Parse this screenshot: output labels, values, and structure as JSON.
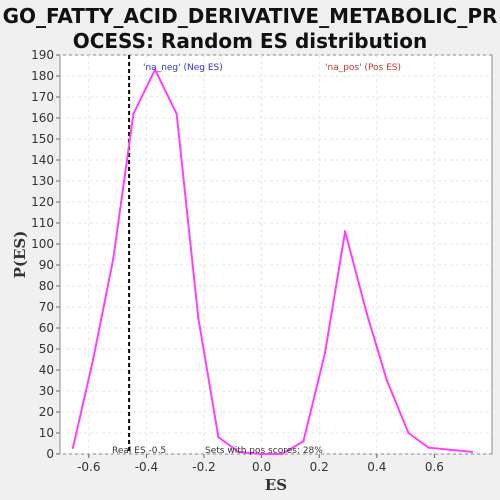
{
  "chart_data": {
    "type": "line",
    "title_line1": "GO_FATTY_ACID_DERIVATIVE_METABOLIC_PR",
    "title_line2": "OCESS: Random ES distribution",
    "xlabel": "ES",
    "ylabel": "P(ES)",
    "xlim": [
      -0.7,
      0.8
    ],
    "ylim": [
      0,
      190
    ],
    "xticks": [
      -0.6,
      -0.4,
      -0.2,
      0.0,
      0.2,
      0.4,
      0.6
    ],
    "xtick_labels": [
      "-0.6",
      "-0.4",
      "-0.2",
      "0.0",
      "0.2",
      "0.4",
      "0.6"
    ],
    "yticks": [
      0,
      10,
      20,
      30,
      40,
      50,
      60,
      70,
      80,
      90,
      100,
      110,
      120,
      130,
      140,
      150,
      160,
      170,
      180,
      190
    ],
    "grid": true,
    "series": [
      {
        "color": "#ff40ff",
        "x": [
          -0.655,
          -0.585,
          -0.515,
          -0.445,
          -0.37,
          -0.295,
          -0.22,
          -0.15,
          -0.08,
          -0.005,
          0.07,
          0.145,
          0.22,
          0.29,
          0.365,
          0.435,
          0.51,
          0.58,
          0.655,
          0.73
        ],
        "y": [
          3,
          45,
          93,
          162,
          183,
          162,
          65,
          8,
          1,
          0,
          0,
          6,
          48,
          106,
          67,
          35,
          10,
          3,
          2,
          1
        ]
      }
    ],
    "real_es_line": {
      "x": -0.46,
      "color": "#000000"
    },
    "annotations": {
      "neg_label": "'na_neg' (Neg ES)",
      "neg_color": "#3333cc",
      "pos_label": "'na_pos' (Pos ES)",
      "pos_color": "#cc3333",
      "real_es": "Real ES -0.5",
      "pos_scores": "Sets with pos scores: 28%"
    }
  }
}
